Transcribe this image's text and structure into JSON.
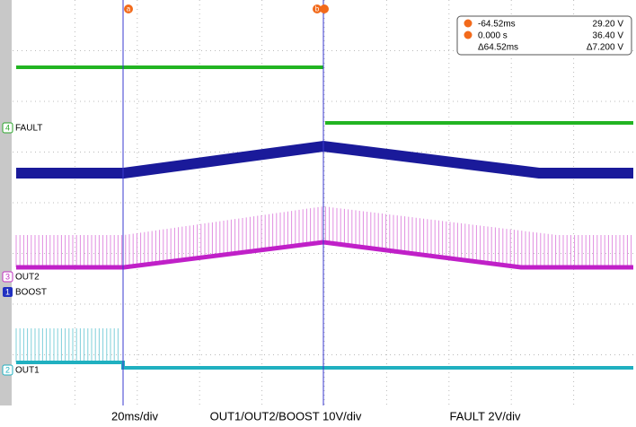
{
  "channels": [
    {
      "number": "4",
      "label": "FAULT"
    },
    {
      "number": "3",
      "label": "OUT2"
    },
    {
      "number": "1",
      "label": "BOOST"
    },
    {
      "number": "2",
      "label": "OUT1"
    }
  ],
  "cursor_markers": [
    "a",
    "b"
  ],
  "readout": {
    "rows": [
      [
        "-64.52ms",
        "29.20 V"
      ],
      [
        "0.000 s",
        "36.40 V"
      ],
      [
        "Δ64.52ms",
        "Δ7.200 V"
      ]
    ]
  },
  "scale_labels": [
    "20ms/div",
    "OUT1/OUT2/BOOST 10V/div",
    "FAULT 2V/div"
  ]
}
